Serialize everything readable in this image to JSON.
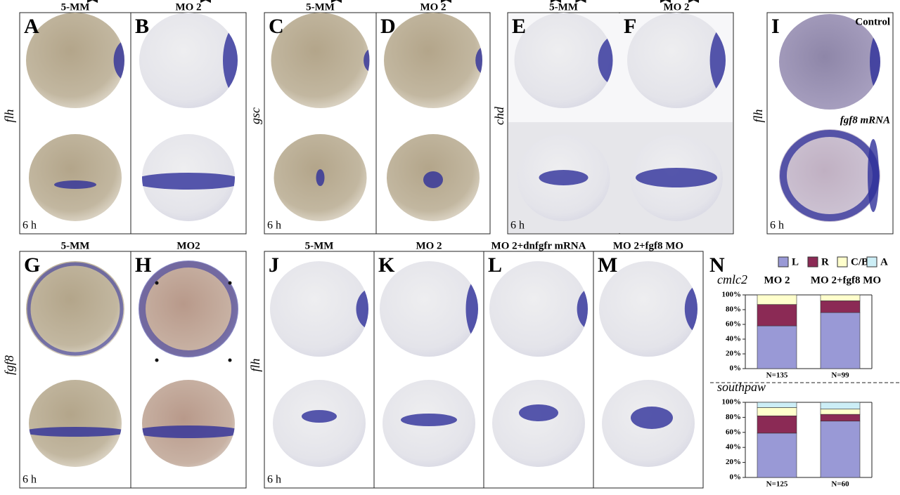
{
  "panels": [
    {
      "letter": "A",
      "header": "5-MM"
    },
    {
      "letter": "B",
      "header": "MO 2"
    },
    {
      "letter": "C",
      "header": "5-MM"
    },
    {
      "letter": "D",
      "header": "MO 2"
    },
    {
      "letter": "E",
      "header": "5-MM"
    },
    {
      "letter": "F",
      "header": "MO 2"
    },
    {
      "letter": "I"
    },
    {
      "letter": "G",
      "header": "5-MM"
    },
    {
      "letter": "H",
      "header": "MO2"
    },
    {
      "letter": "J",
      "header": "5-MM"
    },
    {
      "letter": "K",
      "header": "MO 2"
    },
    {
      "letter": "L",
      "header": "MO 2+dnfgfr mRNA"
    },
    {
      "letter": "M",
      "header": "MO 2+fgf8 MO"
    },
    {
      "letter": "N"
    }
  ],
  "side_labels": [
    "flh",
    "gsc",
    "chd",
    "flh",
    "fgf8",
    "flh"
  ],
  "time_labels": [
    "6 h",
    "6 h",
    "6 h",
    "6 h",
    "6 h",
    "6 h"
  ],
  "panel_i_labels": [
    "Control",
    "fgf8 mRNA"
  ],
  "chart_data": [
    {
      "type": "bar",
      "stacked": true,
      "title": "cmlc2",
      "column_labels": [
        "MO 2",
        "MO 2+fgf8 MO"
      ],
      "categories": [
        "N=135",
        "N=99"
      ],
      "series": [
        {
          "name": "L",
          "color": "#9999d6",
          "values": [
            58,
            76
          ]
        },
        {
          "name": "R",
          "color": "#8b2a55",
          "values": [
            29,
            16
          ]
        },
        {
          "name": "C/B",
          "color": "#ffffcc",
          "values": [
            13,
            8
          ]
        },
        {
          "name": "A",
          "color": "#cceef6",
          "values": [
            0,
            0
          ]
        }
      ],
      "ylim": [
        0,
        100
      ],
      "yticks": [
        {
          "value": 0,
          "label": "0%"
        },
        {
          "value": 20,
          "label": "20%"
        },
        {
          "value": 40,
          "label": "40%"
        },
        {
          "value": 60,
          "label": "60%"
        },
        {
          "value": 80,
          "label": "80%"
        },
        {
          "value": 100,
          "label": "100%"
        }
      ]
    },
    {
      "type": "bar",
      "stacked": true,
      "title": "southpaw",
      "categories": [
        "N=125",
        "N=60"
      ],
      "series": [
        {
          "name": "L",
          "color": "#9999d6",
          "values": [
            59,
            75
          ]
        },
        {
          "name": "R",
          "color": "#8b2a55",
          "values": [
            23,
            9
          ]
        },
        {
          "name": "C/B",
          "color": "#ffffcc",
          "values": [
            11,
            7
          ]
        },
        {
          "name": "A",
          "color": "#cceef6",
          "values": [
            7,
            9
          ]
        }
      ],
      "ylim": [
        0,
        100
      ],
      "yticks": [
        {
          "value": 0,
          "label": "0%"
        },
        {
          "value": 20,
          "label": "20%"
        },
        {
          "value": 40,
          "label": "40%"
        },
        {
          "value": 60,
          "label": "60%"
        },
        {
          "value": 80,
          "label": "80%"
        },
        {
          "value": 100,
          "label": "100%"
        }
      ]
    }
  ]
}
